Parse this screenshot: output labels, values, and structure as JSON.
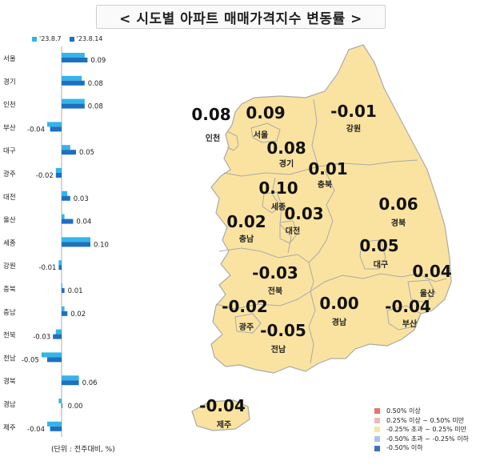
{
  "title": "< 시도별 아파트 매매가격지수 변동률 >",
  "unit_note": "(단위 : 전주대비, %)",
  "chart_data": {
    "type": "bar",
    "orientation": "horizontal",
    "categories": [
      "서울",
      "경기",
      "인천",
      "부산",
      "대구",
      "광주",
      "대전",
      "울산",
      "세종",
      "강원",
      "충북",
      "충남",
      "전북",
      "전남",
      "경북",
      "경남",
      "제주"
    ],
    "series": [
      {
        "name": "'23.8.7",
        "color": "#33b5e8",
        "values": [
          0.08,
          0.07,
          0.08,
          -0.05,
          0.03,
          -0.02,
          0.02,
          0.01,
          0.1,
          -0.01,
          0.0,
          0.01,
          -0.02,
          -0.07,
          0.06,
          -0.01,
          -0.05
        ]
      },
      {
        "name": "'23.8.14",
        "color": "#1f6fbf",
        "values": [
          0.09,
          0.08,
          0.08,
          -0.04,
          0.05,
          -0.02,
          0.03,
          0.04,
          0.1,
          -0.01,
          0.01,
          0.02,
          -0.03,
          -0.05,
          0.06,
          0.0,
          -0.04
        ]
      }
    ],
    "value_labels": [
      "0.09",
      "0.08",
      "0.08",
      "-0.04",
      "0.05",
      "-0.02",
      "0.03",
      "0.04",
      "0.10",
      "-0.01",
      "0.01",
      "0.02",
      "-0.03",
      "-0.05",
      "0.06",
      "0.00",
      "-0.04"
    ]
  },
  "map": {
    "fill": "#fae3a0",
    "stroke": "#aaaaaa",
    "regions": [
      {
        "name": "인천",
        "value": "0.08"
      },
      {
        "name": "서울",
        "value": "0.09"
      },
      {
        "name": "경기",
        "value": "0.08"
      },
      {
        "name": "강원",
        "value": "-0.01"
      },
      {
        "name": "충북",
        "value": "0.01"
      },
      {
        "name": "세종",
        "value": "0.10"
      },
      {
        "name": "대전",
        "value": "0.03"
      },
      {
        "name": "충남",
        "value": "0.02"
      },
      {
        "name": "경북",
        "value": "0.06"
      },
      {
        "name": "대구",
        "value": "0.05"
      },
      {
        "name": "울산",
        "value": "0.04"
      },
      {
        "name": "전북",
        "value": "-0.03"
      },
      {
        "name": "광주",
        "value": "-0.02"
      },
      {
        "name": "경남",
        "value": "0.00"
      },
      {
        "name": "부산",
        "value": "-0.04"
      },
      {
        "name": "전남",
        "value": "-0.05"
      },
      {
        "name": "제주",
        "value": "-0.04"
      }
    ]
  },
  "map_legend": [
    {
      "label": "0.50% 이상",
      "color": "#e57373"
    },
    {
      "label": "0.25% 이상 ~ 0.50% 미만",
      "color": "#f4b6b6"
    },
    {
      "label": "-0.25% 초과 ~ 0.25% 미만",
      "color": "#fae3a0"
    },
    {
      "label": "-0.50% 초과 ~ -0.25% 이하",
      "color": "#a9c4ea"
    },
    {
      "label": "-0.50% 이하",
      "color": "#3f6fbf"
    }
  ]
}
